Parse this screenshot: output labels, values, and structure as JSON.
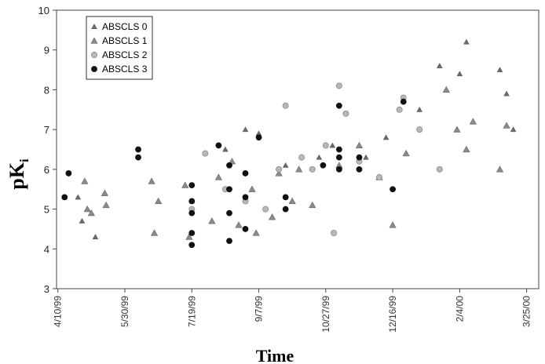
{
  "chart_data": {
    "type": "scatter",
    "title": "",
    "xlabel": "Time",
    "ylabel": "pK",
    "ylabel_subscript": "i",
    "ylim": [
      3,
      10
    ],
    "yticks": [
      3,
      4,
      5,
      6,
      7,
      8,
      9,
      10
    ],
    "xlim": [
      -1,
      359
    ],
    "xticks": [
      {
        "x": 0,
        "label": "4/10/99"
      },
      {
        "x": 50,
        "label": "5/30/99"
      },
      {
        "x": 100,
        "label": "7/19/99"
      },
      {
        "x": 150,
        "label": "9/7/99"
      },
      {
        "x": 200,
        "label": "10/27/99"
      },
      {
        "x": 250,
        "label": "12/16/99"
      },
      {
        "x": 300,
        "label": "2/4/00"
      },
      {
        "x": 350,
        "label": "3/25/00"
      }
    ],
    "x_unit": "days since 4/10/99",
    "grid": false,
    "legend_position": "top-left",
    "colors": {
      "absc0": "#6a6a6a",
      "absc1": "#8a8a8a",
      "absc2": "#b8b8b8",
      "absc3": "#111111"
    },
    "series": [
      {
        "name": "ABSCLS 0",
        "marker": "small-triangle",
        "points": [
          [
            15,
            5.3
          ],
          [
            18,
            4.7
          ],
          [
            28,
            4.3
          ],
          [
            100,
            5.2
          ],
          [
            125,
            6.5
          ],
          [
            140,
            7.0
          ],
          [
            150,
            6.9
          ],
          [
            170,
            6.1
          ],
          [
            195,
            6.3
          ],
          [
            205,
            6.6
          ],
          [
            230,
            6.3
          ],
          [
            245,
            6.8
          ],
          [
            270,
            7.5
          ],
          [
            285,
            8.6
          ],
          [
            300,
            8.4
          ],
          [
            305,
            9.2
          ],
          [
            330,
            8.5
          ],
          [
            335,
            7.9
          ],
          [
            340,
            7.0
          ]
        ]
      },
      {
        "name": "ABSCLS 1",
        "marker": "triangle",
        "points": [
          [
            20,
            5.7
          ],
          [
            22,
            5.0
          ],
          [
            25,
            4.9
          ],
          [
            35,
            5.4
          ],
          [
            36,
            5.1
          ],
          [
            70,
            5.7
          ],
          [
            72,
            4.4
          ],
          [
            75,
            5.2
          ],
          [
            95,
            5.6
          ],
          [
            98,
            4.3
          ],
          [
            115,
            4.7
          ],
          [
            120,
            5.8
          ],
          [
            130,
            6.2
          ],
          [
            135,
            4.6
          ],
          [
            145,
            5.5
          ],
          [
            148,
            4.4
          ],
          [
            160,
            4.8
          ],
          [
            165,
            5.9
          ],
          [
            175,
            5.2
          ],
          [
            180,
            6.0
          ],
          [
            190,
            5.1
          ],
          [
            210,
            6.1
          ],
          [
            225,
            6.6
          ],
          [
            240,
            5.8
          ],
          [
            250,
            4.6
          ],
          [
            260,
            6.4
          ],
          [
            290,
            8.0
          ],
          [
            298,
            7.0
          ],
          [
            305,
            6.5
          ],
          [
            310,
            7.2
          ],
          [
            330,
            6.0
          ],
          [
            335,
            7.1
          ]
        ]
      },
      {
        "name": "ABSCLS 2",
        "marker": "circle",
        "points": [
          [
            100,
            5.0
          ],
          [
            110,
            6.4
          ],
          [
            125,
            5.5
          ],
          [
            140,
            5.2
          ],
          [
            155,
            5.0
          ],
          [
            165,
            6.0
          ],
          [
            170,
            7.6
          ],
          [
            182,
            6.3
          ],
          [
            190,
            6.0
          ],
          [
            200,
            6.6
          ],
          [
            206,
            4.4
          ],
          [
            210,
            8.1
          ],
          [
            215,
            7.4
          ],
          [
            225,
            6.2
          ],
          [
            240,
            5.8
          ],
          [
            255,
            7.5
          ],
          [
            258,
            7.8
          ],
          [
            270,
            7.0
          ],
          [
            285,
            6.0
          ]
        ]
      },
      {
        "name": "ABSCLS 3",
        "marker": "filled-circle",
        "points": [
          [
            5,
            5.3
          ],
          [
            8,
            5.9
          ],
          [
            60,
            6.5
          ],
          [
            60,
            6.3
          ],
          [
            100,
            5.6
          ],
          [
            100,
            5.2
          ],
          [
            100,
            4.9
          ],
          [
            100,
            4.4
          ],
          [
            100,
            4.1
          ],
          [
            120,
            6.6
          ],
          [
            128,
            6.1
          ],
          [
            128,
            5.5
          ],
          [
            128,
            4.9
          ],
          [
            128,
            4.2
          ],
          [
            140,
            5.9
          ],
          [
            140,
            5.3
          ],
          [
            140,
            4.5
          ],
          [
            150,
            6.8
          ],
          [
            170,
            5.3
          ],
          [
            170,
            5.0
          ],
          [
            198,
            6.1
          ],
          [
            210,
            7.6
          ],
          [
            210,
            6.5
          ],
          [
            210,
            6.3
          ],
          [
            210,
            6.0
          ],
          [
            225,
            6.3
          ],
          [
            225,
            6.0
          ],
          [
            250,
            5.5
          ],
          [
            258,
            7.7
          ]
        ]
      }
    ]
  }
}
